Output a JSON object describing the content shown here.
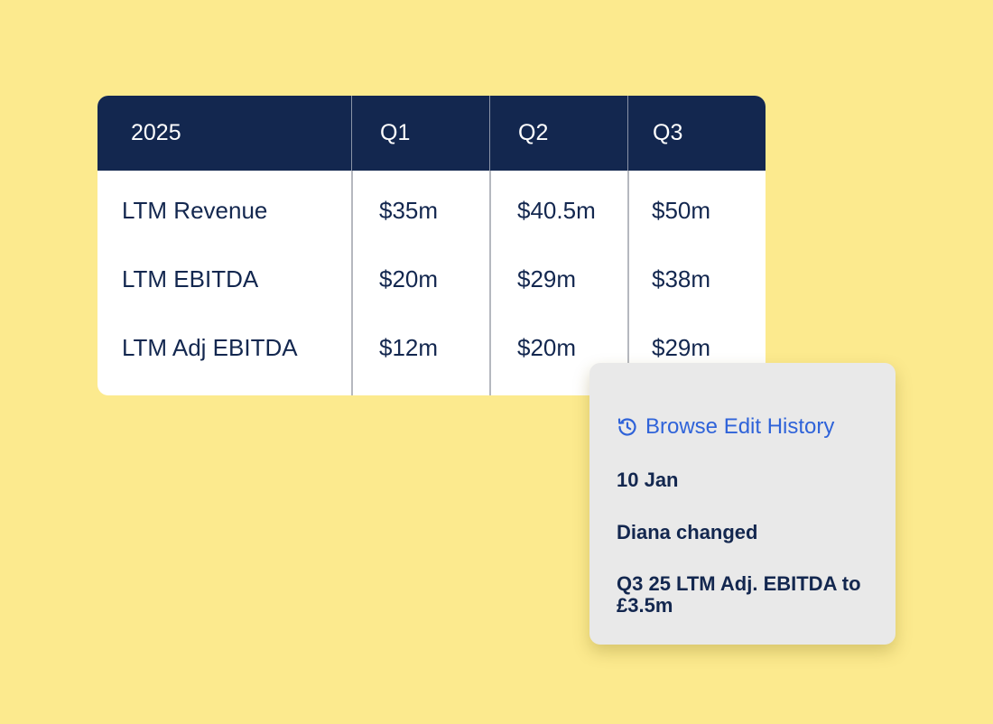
{
  "table": {
    "headers": [
      "2025",
      "Q1",
      "Q2",
      "Q3"
    ],
    "rows": [
      {
        "label": "LTM Revenue",
        "q1": "$35m",
        "q2": "$40.5m",
        "q3": "$50m"
      },
      {
        "label": "LTM EBITDA",
        "q1": "$20m",
        "q2": "$29m",
        "q3": "$38m"
      },
      {
        "label": "LTM Adj EBITDA",
        "q1": "$12m",
        "q2": "$20m",
        "q3": "$29m"
      }
    ]
  },
  "history": {
    "link_label": "Browse Edit History",
    "link_icon": "history-icon",
    "date": "10 Jan",
    "who": "Diana changed",
    "detail": "Q3 25 LTM Adj. EBITDA to £3.5m"
  },
  "colors": {
    "background": "#fcea8e",
    "header": "#13274f",
    "text": "#13274f",
    "link": "#2f63d9",
    "popover": "#e9e9e9"
  }
}
